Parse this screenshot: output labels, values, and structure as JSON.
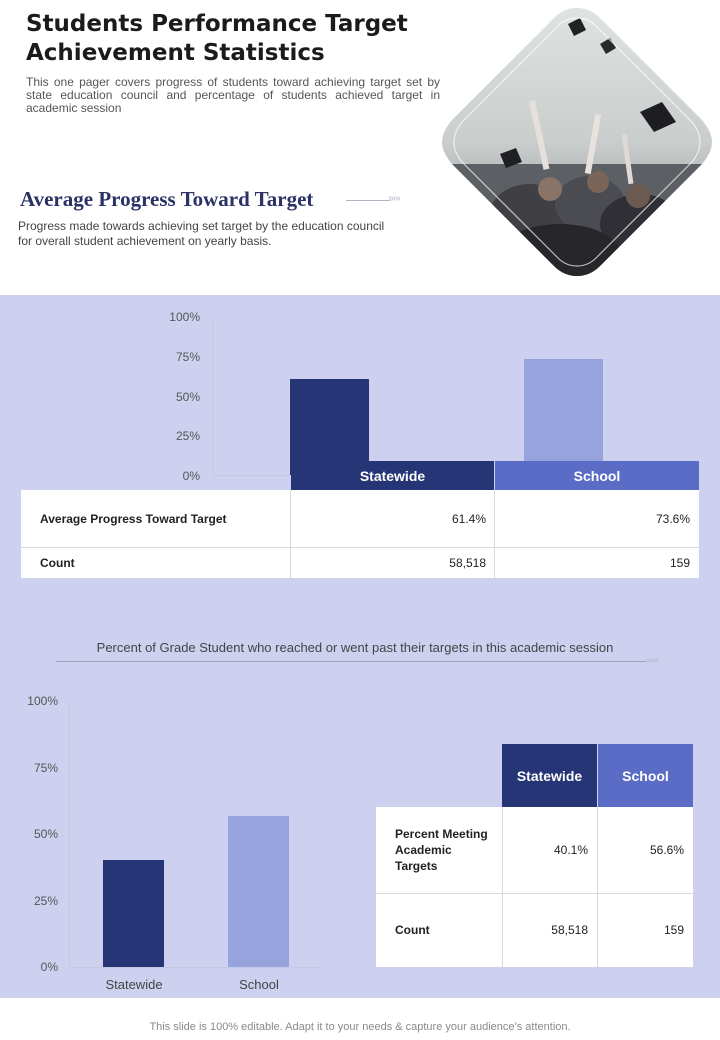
{
  "header": {
    "title": "Students Performance Target Achievement Statistics",
    "intro": "This one pager covers progress of students toward achieving target set by state education council and percentage of students achieved target in academic session"
  },
  "section1": {
    "title": "Average Progress Toward Target",
    "description": "Progress made towards achieving set target by the education council for overall  student achievement  on yearly basis.",
    "arrow": "›››››"
  },
  "chart_data": [
    {
      "type": "bar",
      "title": "",
      "categories": [
        "Statewide",
        "School"
      ],
      "values": [
        61.4,
        73.6
      ],
      "ylim": [
        0,
        100
      ],
      "yticks": [
        "100%",
        "75%",
        "50%",
        "25%",
        "0%"
      ],
      "colors": [
        "#253575",
        "#96a3dc"
      ]
    },
    {
      "type": "bar",
      "title": "Percent of Grade Student who reached or went past their targets in this academic session",
      "categories": [
        "Statewide",
        "School"
      ],
      "values": [
        40.1,
        56.6
      ],
      "ylim": [
        0,
        100
      ],
      "yticks": [
        "100%",
        "75%",
        "50%",
        "25%",
        "0%"
      ],
      "colors": [
        "#253575",
        "#96a3dc"
      ]
    }
  ],
  "table1": {
    "headers": [
      "Statewide",
      "School"
    ],
    "rows": [
      {
        "label": "Average Progress  Toward Target",
        "statewide": "61.4%",
        "school": "73.6%"
      },
      {
        "label": "Count",
        "statewide": "58,518",
        "school": "159"
      }
    ]
  },
  "section2": {
    "subtitle": "Percent of Grade Student who reached or went past their targets in this academic session",
    "arrow": "›››››"
  },
  "table2": {
    "headers": [
      "Statewide",
      "School"
    ],
    "rows": [
      {
        "label": "Percent Meeting Academic Targets",
        "statewide": "40.1%",
        "school": "56.6%"
      },
      {
        "label": "Count",
        "statewide": "58,518",
        "school": "159"
      }
    ]
  },
  "footer": "This slide is 100% editable. Adapt it to your needs & capture your audience’s attention."
}
